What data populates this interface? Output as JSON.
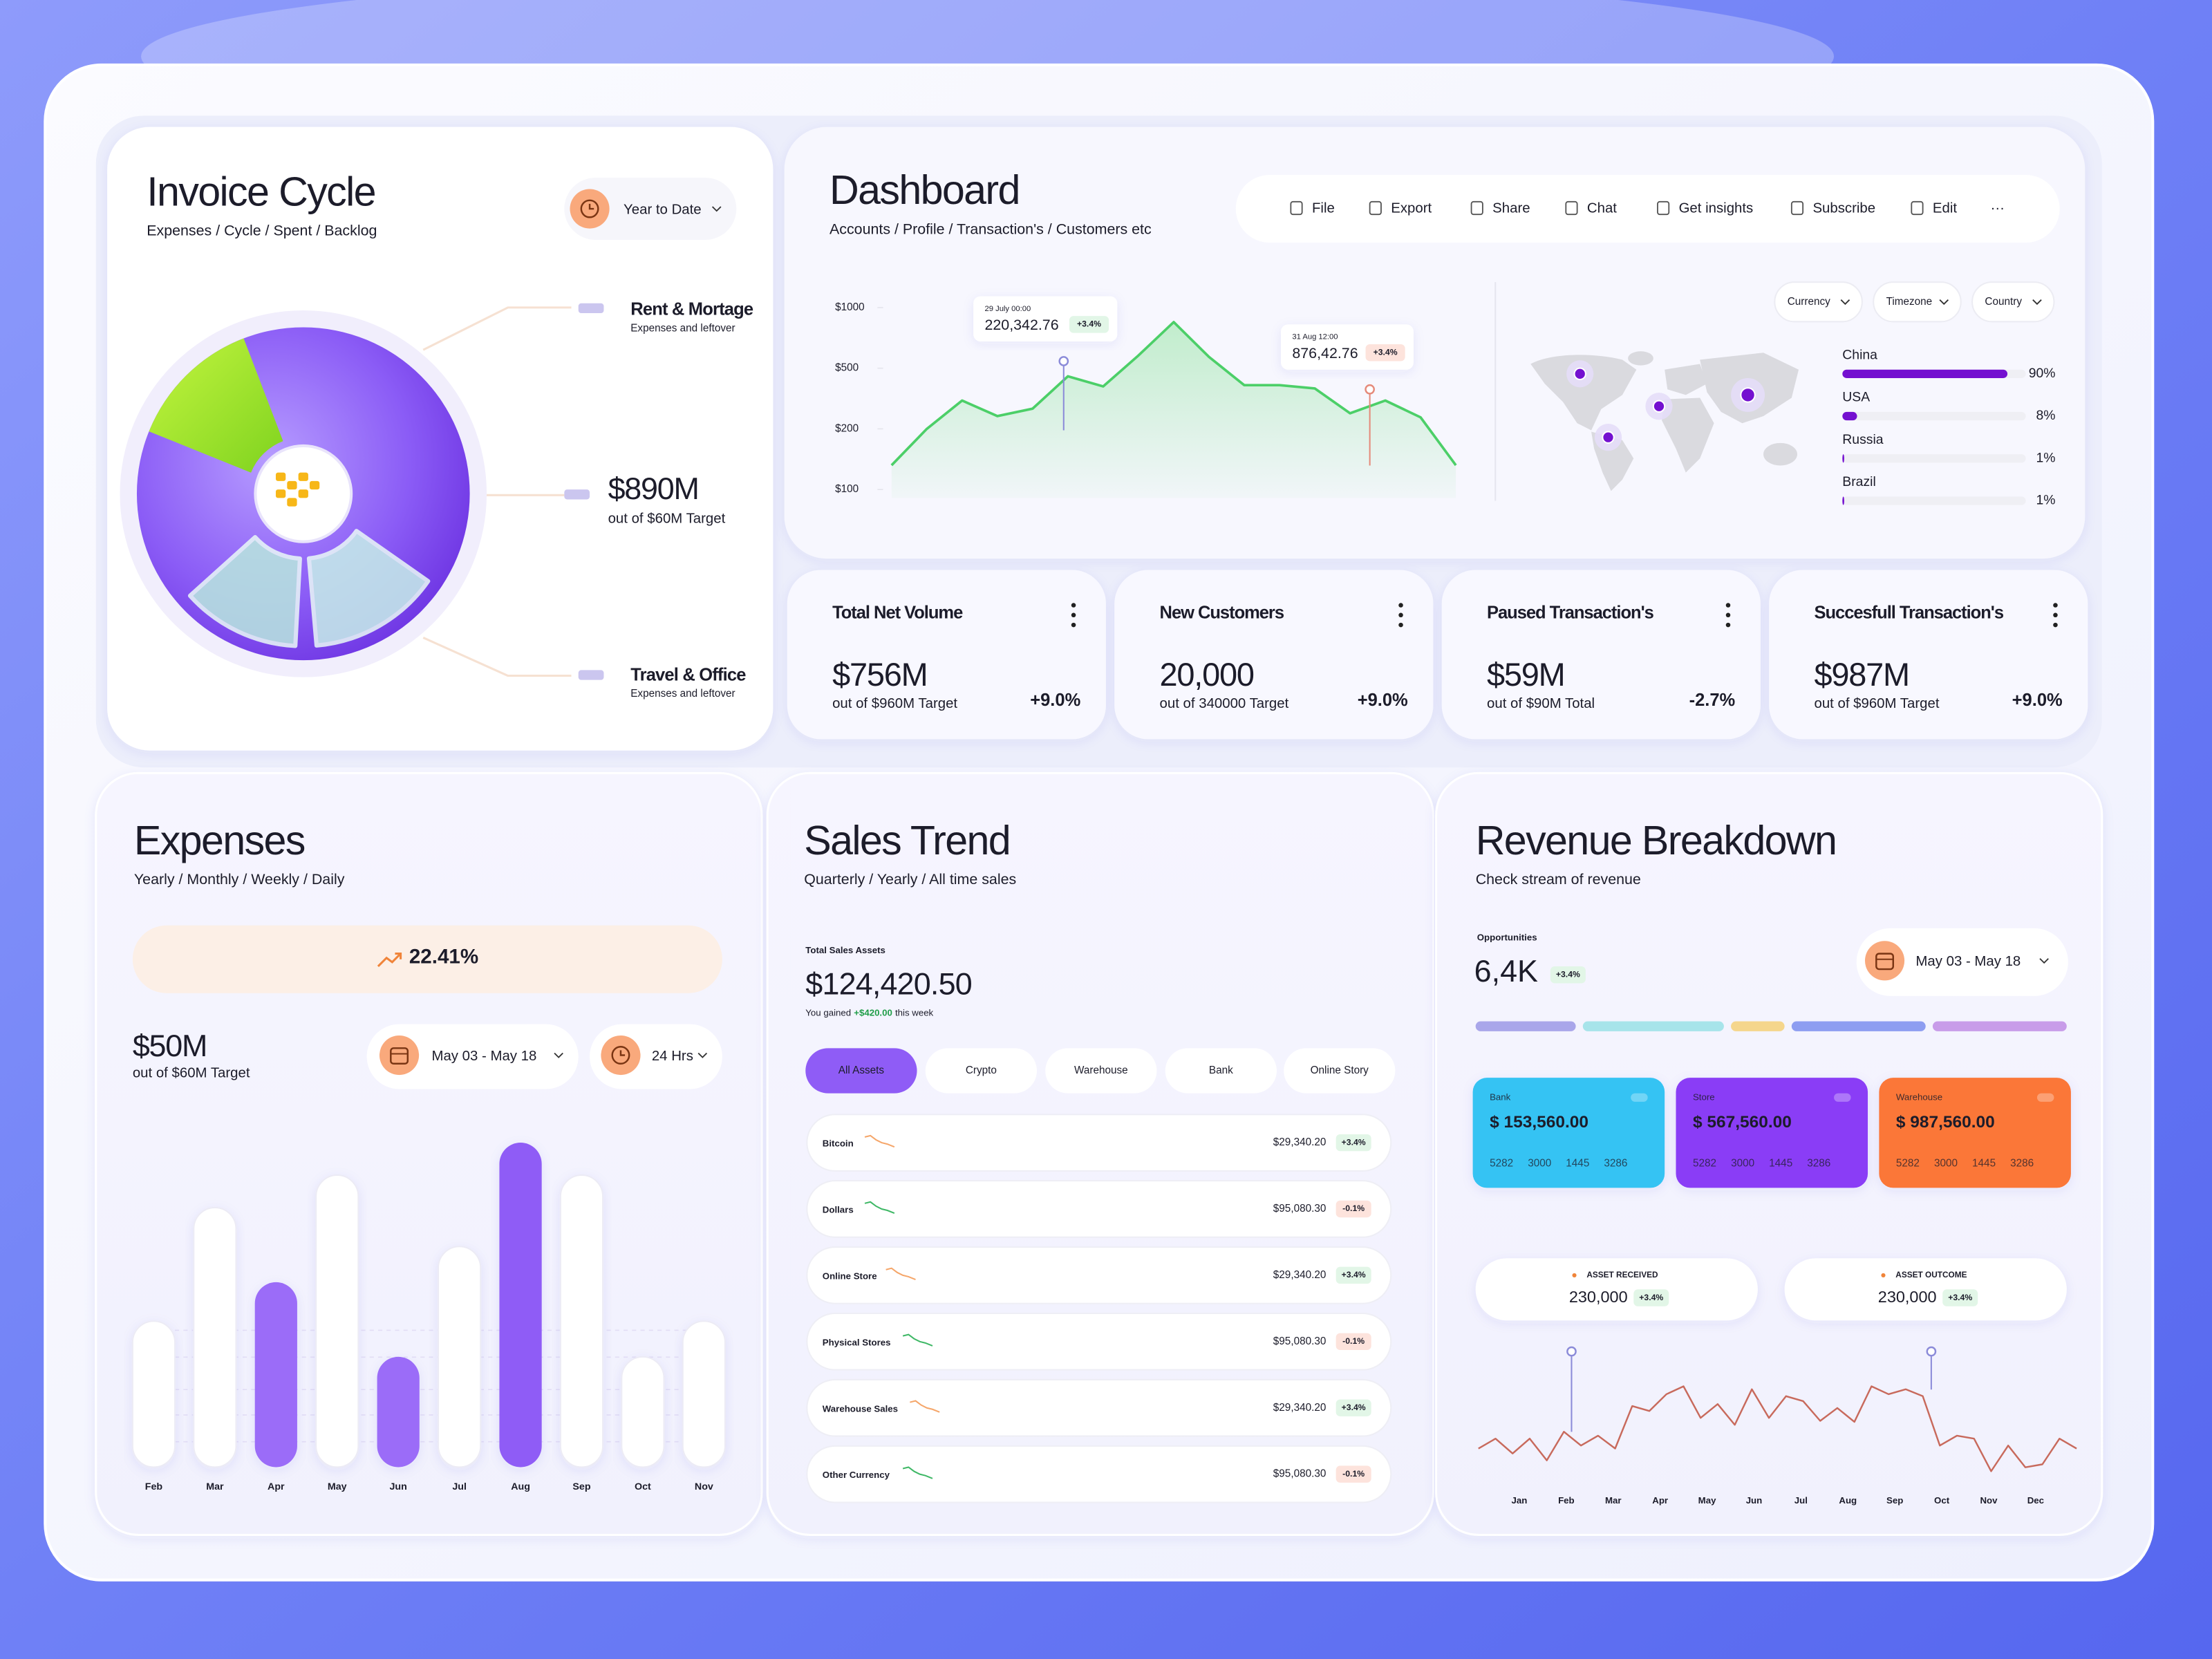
{
  "invoice": {
    "title": "Invoice Cycle",
    "subtitle": "Expenses / Cycle / Spent / Backlog",
    "period": "Year to Date",
    "items": [
      {
        "title": "Rent & Mortage",
        "note": "Expenses and leftover"
      },
      {
        "title": "Travel & Office",
        "note": "Expenses and leftover"
      }
    ],
    "total": {
      "value": "$890M",
      "note": "out of $60M Target"
    }
  },
  "dashboard": {
    "title": "Dashboard",
    "subtitle": "Accounts / Profile / Transaction's / Customers etc",
    "toolbar": [
      "File",
      "Export",
      "Share",
      "Chat",
      "Get insights",
      "Subscribe",
      "Edit",
      "···"
    ],
    "chart": {
      "type": "line",
      "ylim": [
        100,
        1000
      ],
      "yticks": [
        {
          "value": 100,
          "label": "$100"
        },
        {
          "value": 200,
          "label": "$200"
        },
        {
          "value": 500,
          "label": "$500"
        },
        {
          "value": 1000,
          "label": "$1000"
        }
      ],
      "values": [
        140,
        200,
        340,
        263,
        300,
        460,
        410,
        605,
        880,
        593,
        416,
        416,
        400,
        277,
        340,
        257,
        140
      ],
      "color": "#4ccf68",
      "tooltips": [
        {
          "date": "29 July 00:00",
          "value": "220,342.76",
          "change": "+3.4%"
        },
        {
          "date": "31 Aug 12:00",
          "value": "876,42.76",
          "change": "+3.4%"
        }
      ]
    },
    "filters": [
      "Currency",
      "Timezone",
      "Country"
    ],
    "countries": {
      "type": "bar",
      "categories": [
        "China",
        "USA",
        "Russia",
        "Brazil"
      ],
      "values": [
        90,
        8,
        1,
        1
      ],
      "value_labels": [
        "90%",
        "8%",
        "1%",
        "1%"
      ],
      "xlim": [
        0,
        100
      ],
      "color": "#7410d0"
    }
  },
  "kpis": [
    {
      "title": "Total Net Volume",
      "value": "$756M",
      "note": "out of $960M Target",
      "change": "+9.0%",
      "color": "#1f9d48"
    },
    {
      "title": "New Customers",
      "value": "20,000",
      "note": "out of 340000 Target",
      "change": "+9.0%",
      "color": "#1f9d48"
    },
    {
      "title": "Paused Transaction's",
      "value": "$59M",
      "note": "out of $90M Total",
      "change": "-2.7%",
      "color": "#e2403f"
    },
    {
      "title": "Succesfull Transaction's",
      "value": "$987M",
      "note": "out of $960M Target",
      "change": "+9.0%",
      "color": "#1f9d48"
    }
  ],
  "expenses": {
    "title": "Expenses",
    "subtitle": "Yearly / Monthly / Weekly / Daily",
    "growth": "22.41%",
    "total": "$50M",
    "note": "out of $60M Target",
    "date_range": "May 03 - May 18",
    "interval": "24 Hrs",
    "chart": {
      "type": "bar",
      "categories": [
        "Feb",
        "Mar",
        "Apr",
        "May",
        "Jun",
        "Jul",
        "Aug",
        "Sep",
        "Oct",
        "Nov"
      ],
      "values": [
        45,
        80,
        57,
        90,
        34,
        68,
        100,
        90,
        34,
        45
      ],
      "ylim": [
        0,
        100
      ],
      "colors": [
        "#ffffff",
        "#ffffff",
        "#9b6cf8",
        "#ffffff",
        "#9b6cf8",
        "#ffffff",
        "#8f5cf6",
        "#ffffff",
        "#ffffff",
        "#ffffff"
      ]
    }
  },
  "sales": {
    "title": "Sales Trend",
    "subtitle": "Quarterly / Yearly / All time sales",
    "label": "Total Sales Assets",
    "total": "$124,420.50",
    "gain": {
      "prefix": "You gained",
      "amount": "+$420.00",
      "suffix": "this week"
    },
    "tabs": [
      "All Assets",
      "Crypto",
      "Warehouse",
      "Bank",
      "Online Story"
    ],
    "rows": [
      {
        "name": "Bitcoin",
        "amount": "$29,340.20",
        "change": "+3.4%"
      },
      {
        "name": "Dollars",
        "amount": "$95,080.30",
        "change": "-0.1%"
      },
      {
        "name": "Online Store",
        "amount": "$29,340.20",
        "change": "+3.4%"
      },
      {
        "name": "Physical Stores",
        "amount": "$95,080.30",
        "change": "-0.1%"
      },
      {
        "name": "Warehouse Sales",
        "amount": "$29,340.20",
        "change": "+3.4%"
      },
      {
        "name": "Other Currency",
        "amount": "$95,080.30",
        "change": "-0.1%"
      }
    ]
  },
  "revenue": {
    "title": "Revenue Breakdown",
    "subtitle": "Check stream of revenue",
    "label": "Opportunities",
    "total": "6,4K",
    "change": "+3.4%",
    "date_range": "May 03 - May 18",
    "cards": [
      {
        "name": "Bank",
        "amount": "$ 153,560.00",
        "digits": [
          "5282",
          "3000",
          "1445",
          "3286"
        ],
        "color": "#35c3f3"
      },
      {
        "name": "Store",
        "amount": "$ 567,560.00",
        "digits": [
          "5282",
          "3000",
          "1445",
          "3286"
        ],
        "color": "#8a3df6"
      },
      {
        "name": "Warehouse",
        "amount": "$ 987,560.00",
        "digits": [
          "5282",
          "3000",
          "1445",
          "3286"
        ],
        "color": "#fb7737"
      }
    ],
    "assets": [
      {
        "label": "ASSET RECEIVED",
        "value": "230,000",
        "change": "+3.4%"
      },
      {
        "label": "ASSET OUTCOME",
        "value": "230,000",
        "change": "+3.4%"
      }
    ],
    "chart": {
      "type": "line",
      "x_labels": [
        "Jan",
        "Feb",
        "Mar",
        "Apr",
        "May",
        "Jun",
        "Jul",
        "Aug",
        "Sep",
        "Oct",
        "Nov",
        "Dec"
      ],
      "values": [
        26,
        36,
        21,
        36,
        14,
        43,
        29,
        39,
        26,
        69,
        64,
        81,
        89,
        57,
        71,
        50,
        86,
        57,
        79,
        74,
        54,
        67,
        53,
        89,
        81,
        86,
        79,
        29,
        39,
        36,
        3,
        29,
        7,
        10,
        36,
        26
      ],
      "ylim": [
        0,
        100
      ],
      "color": "#c86a5c"
    }
  }
}
